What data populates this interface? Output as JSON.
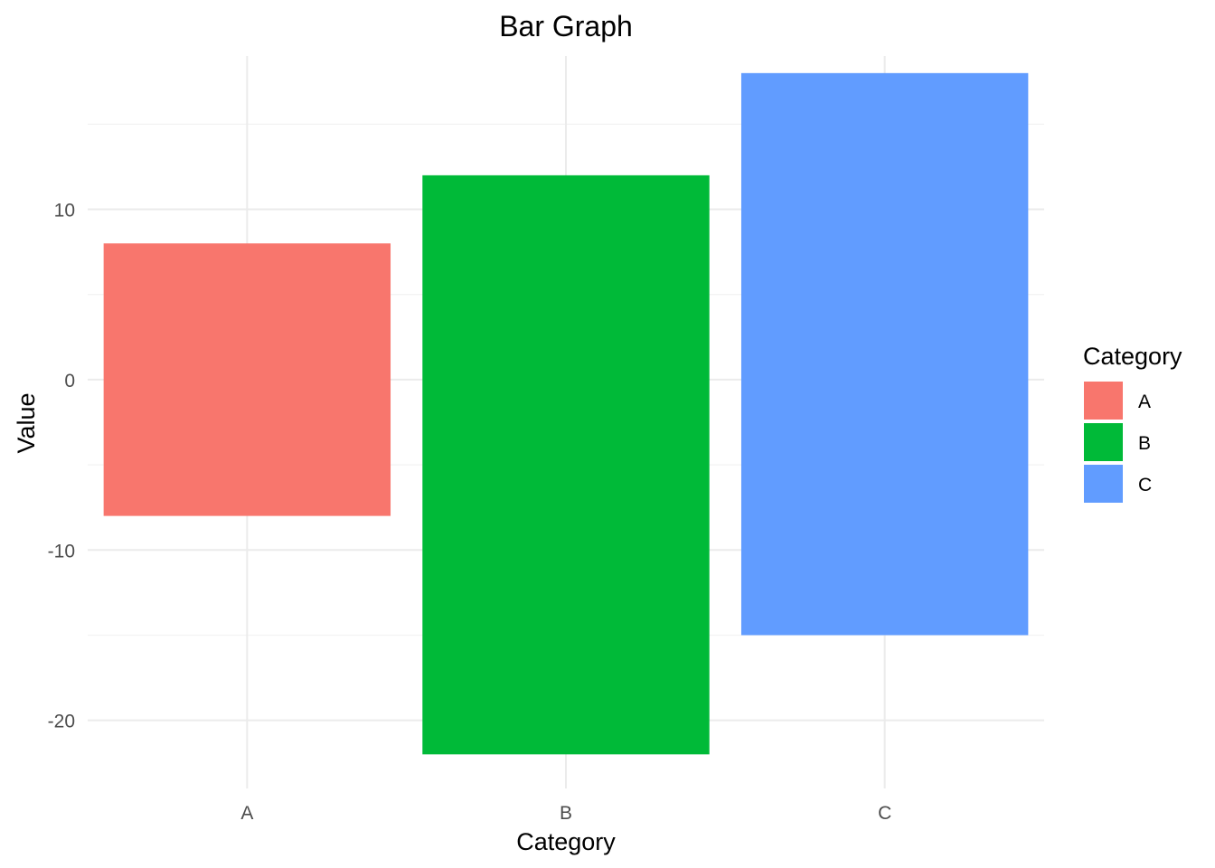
{
  "chart_data": {
    "type": "floating-bar",
    "title": "Bar Graph",
    "xlabel": "Category",
    "ylabel": "Value",
    "categories": [
      "A",
      "B",
      "C"
    ],
    "ranges": [
      {
        "category": "A",
        "min": -8,
        "max": 8
      },
      {
        "category": "B",
        "min": -22,
        "max": 12
      },
      {
        "category": "C",
        "min": -15,
        "max": 18
      }
    ],
    "colors": [
      "#F8766D",
      "#00BA38",
      "#619CFF"
    ],
    "ylim": [
      -24,
      19
    ],
    "yticks": [
      -20,
      -10,
      0,
      10
    ],
    "grid": true,
    "legend": {
      "title": "Category",
      "position": "right",
      "entries": [
        "A",
        "B",
        "C"
      ]
    }
  }
}
